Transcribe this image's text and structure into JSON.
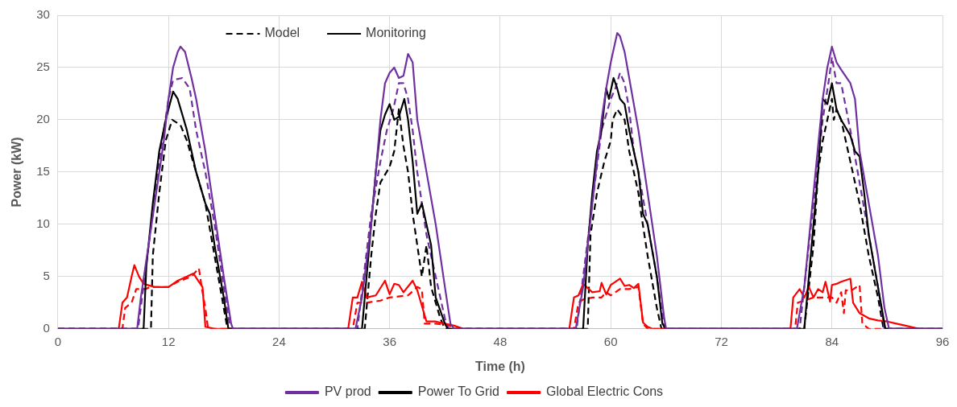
{
  "chart_data": {
    "type": "line",
    "xlabel": "Time (h)",
    "ylabel": "Power (kW)",
    "xlim": [
      0,
      96
    ],
    "ylim": [
      0,
      30
    ],
    "xticks": [
      0,
      12,
      24,
      36,
      48,
      60,
      72,
      84,
      96
    ],
    "yticks": [
      0,
      5,
      10,
      15,
      20,
      25,
      30
    ],
    "grid": true,
    "legend": "bottom",
    "marker": "none",
    "annotations": [
      "Model",
      "Monitoring"
    ],
    "series": [
      {
        "name": "PV prod",
        "color": "#7030a0",
        "line_style": "solid",
        "x": [
          0,
          8.6,
          9,
          10,
          11,
          11.5,
          12,
          12.5,
          13,
          13.3,
          13.8,
          14.5,
          15,
          16,
          17,
          18,
          18.8,
          19,
          32.3,
          33,
          34,
          34.5,
          35,
          35.5,
          36,
          36.5,
          37,
          37.5,
          38,
          38.5,
          39,
          40,
          41,
          42,
          42.6,
          43,
          56.2,
          57,
          58,
          59,
          59.5,
          60,
          60.5,
          60.7,
          61,
          61.5,
          62,
          63,
          64,
          65,
          65.8,
          66,
          80.2,
          81,
          82,
          83,
          83.5,
          84,
          84.5,
          85,
          86,
          86.5,
          87,
          88,
          89,
          89.7,
          90.2,
          96
        ],
        "values": [
          0,
          0,
          3,
          9,
          15,
          18,
          22,
          25,
          26.5,
          27,
          26.5,
          24,
          22,
          17,
          11,
          5,
          0.5,
          0,
          0,
          3,
          10,
          15,
          20,
          23.5,
          24.5,
          25,
          24,
          24.2,
          26.3,
          25.5,
          20,
          15,
          10,
          4,
          0.5,
          0,
          0,
          4,
          12,
          20,
          23,
          25.5,
          27.5,
          28.3,
          28,
          26.5,
          24,
          19,
          13,
          7,
          1,
          0,
          0,
          4,
          13,
          22,
          25,
          27,
          25.5,
          24.8,
          23.5,
          22,
          17,
          12,
          7,
          2,
          0,
          0
        ]
      },
      {
        "name": "Power To Grid",
        "color": "#000000",
        "line_style": "solid",
        "x": [
          0,
          9.3,
          9.6,
          10.3,
          11,
          11.7,
          12.5,
          13,
          14,
          15,
          16,
          16.5,
          17,
          18,
          18.5,
          33,
          33.5,
          34,
          34.5,
          35,
          35.5,
          36,
          36.5,
          37,
          37.6,
          38,
          38.5,
          39,
          39.5,
          40,
          40.5,
          41,
          42,
          42.3,
          57,
          57.5,
          58,
          58.5,
          59,
          59.5,
          59.8,
          60.3,
          60.7,
          61,
          61.5,
          62,
          62.5,
          63,
          63.5,
          64,
          65,
          65.6,
          66,
          81,
          81.5,
          82,
          82.5,
          83,
          83.5,
          84,
          84.5,
          85,
          86,
          86.5,
          87,
          87.5,
          88,
          89,
          89.8,
          96
        ],
        "values": [
          0,
          0,
          6,
          12,
          17,
          20,
          22.7,
          22,
          19,
          15,
          12,
          11,
          8,
          3,
          0,
          0,
          5,
          10,
          15,
          19,
          20.5,
          21.5,
          20,
          20.3,
          22,
          20,
          16,
          11,
          12,
          10,
          8,
          3,
          0.5,
          0,
          0,
          8,
          13,
          17,
          19,
          23,
          22,
          24,
          23,
          22,
          21.5,
          19,
          17,
          15,
          11,
          10,
          5,
          0.5,
          0,
          0,
          5,
          10,
          15,
          22,
          21.5,
          23.5,
          21,
          20,
          18.5,
          17,
          16.5,
          13,
          9,
          4,
          0,
          0
        ]
      },
      {
        "name": "Global Electric Cons",
        "color": "#ff0000",
        "line_style": "solid",
        "x": [
          0,
          6.6,
          7,
          7.5,
          8,
          8.3,
          8.8,
          9.3,
          10.5,
          12,
          13,
          14,
          14.7,
          15.3,
          15.7,
          16,
          17,
          31.5,
          32,
          32.5,
          33,
          33.5,
          34.5,
          35.5,
          36,
          36.5,
          37,
          37.5,
          38.5,
          39,
          40,
          41,
          42,
          43,
          44,
          55.5,
          56,
          56.5,
          57,
          58,
          58.8,
          59,
          59.5,
          60,
          60.5,
          61,
          61.5,
          62,
          62.5,
          63,
          63.5,
          64,
          64.5,
          79.5,
          79.8,
          80.5,
          81,
          81.5,
          82,
          82.5,
          83,
          83.3,
          83.8,
          84,
          84.5,
          85,
          86,
          86.3,
          87,
          88,
          89,
          90,
          91,
          92,
          93,
          93.5,
          96
        ],
        "values": [
          0,
          0,
          2.5,
          3,
          5,
          6.1,
          5,
          4.3,
          4,
          4,
          4.6,
          5,
          5.3,
          4.5,
          4,
          0.2,
          0,
          0,
          3,
          3,
          4.5,
          3,
          3.2,
          4.6,
          3.3,
          4.3,
          4.2,
          3.5,
          4.6,
          3.7,
          0.7,
          0.7,
          0.5,
          0.3,
          0,
          0,
          3,
          3.2,
          4.3,
          3.5,
          3.6,
          4.4,
          3.3,
          4.2,
          4.5,
          4.8,
          4.1,
          4.2,
          3.9,
          4.3,
          0.6,
          0.2,
          0,
          0,
          3,
          3.8,
          3,
          4,
          3,
          3.8,
          3.5,
          4.5,
          2.6,
          4.2,
          4.3,
          4.5,
          4.8,
          2.5,
          1.5,
          1,
          0.8,
          0.7,
          0.5,
          0.3,
          0.1,
          0,
          0
        ]
      },
      {
        "color": "#7030a0",
        "line_style": "dashed",
        "x": [
          0,
          8.7,
          10,
          11,
          12,
          12.5,
          13.5,
          14.3,
          15,
          16,
          17,
          18,
          18.7,
          32.5,
          34,
          35,
          35.7,
          36.4,
          37,
          37.5,
          38,
          38.5,
          39,
          40,
          41,
          42,
          42.4,
          56.3,
          57,
          58,
          59,
          60,
          60.5,
          61,
          61.5,
          62,
          62.5,
          63,
          64,
          65,
          65.8,
          80.5,
          81,
          82,
          83,
          83.7,
          84,
          84.5,
          85,
          86,
          87,
          88,
          89,
          89.7,
          96
        ],
        "values": [
          0,
          0,
          9,
          16,
          22,
          23.8,
          24,
          23,
          19,
          15,
          10,
          4,
          0,
          0,
          11,
          16,
          19,
          21,
          23.5,
          23.5,
          22,
          19,
          15,
          9,
          5,
          1,
          0,
          0,
          5,
          12,
          19,
          22,
          23,
          24.5,
          23.5,
          21,
          17,
          15,
          10,
          5,
          0,
          0,
          4,
          12,
          20,
          24,
          26,
          23.5,
          23.5,
          19,
          14,
          9,
          4,
          0,
          0
        ]
      },
      {
        "color": "#000000",
        "line_style": "dashed",
        "x": [
          0,
          10.1,
          10.3,
          11,
          11.7,
          12.4,
          13.3,
          14,
          15,
          16,
          17,
          18,
          18.4,
          33.3,
          34,
          34.5,
          35,
          36,
          36.5,
          37,
          37.5,
          38,
          38.5,
          39,
          39.5,
          40,
          40.5,
          41.5,
          42,
          57.5,
          57.8,
          58.5,
          59.3,
          60,
          60.2,
          60.7,
          61.5,
          62,
          63,
          63.3,
          64,
          65,
          65.5,
          81,
          82,
          82.5,
          83,
          84,
          84.2,
          84.5,
          85,
          85.5,
          86,
          87,
          88,
          89,
          89.6,
          96
        ],
        "values": [
          0,
          0,
          7,
          13,
          18,
          20,
          19.5,
          18,
          15,
          12,
          7,
          2,
          0,
          0,
          7,
          11,
          14,
          15.5,
          17,
          21,
          17.5,
          15,
          11,
          8,
          5,
          8,
          4,
          1,
          0,
          0,
          9,
          13,
          16,
          18,
          20,
          21,
          20,
          17,
          13,
          11,
          7,
          2,
          0,
          0,
          8,
          15,
          18,
          22,
          20,
          21,
          20,
          18,
          16,
          12,
          7,
          3,
          0,
          0
        ]
      },
      {
        "color": "#ff0000",
        "line_style": "dashed",
        "x": [
          0,
          7,
          7.3,
          8,
          8.5,
          9.5,
          10,
          12,
          13,
          14.5,
          15,
          15.3,
          15.6,
          16,
          16.3,
          32,
          32.5,
          33.5,
          35,
          36,
          38,
          39,
          39.5,
          39.8,
          41,
          42.5,
          43,
          56,
          56.5,
          57,
          58,
          59,
          59.5,
          60,
          60.5,
          61,
          62,
          63,
          63.5,
          64,
          80,
          80.3,
          81,
          82,
          84,
          84.5,
          85,
          85.3,
          85.5,
          86,
          87,
          87.3,
          88,
          96
        ],
        "values": [
          0,
          0,
          2,
          2.5,
          3.8,
          3.8,
          4,
          4,
          4.5,
          5,
          5.5,
          5.8,
          4,
          2,
          0,
          0,
          2.5,
          2.5,
          2.7,
          3,
          3.2,
          4,
          3.8,
          0.5,
          0.5,
          0.3,
          0,
          0,
          2.5,
          2.8,
          3,
          3,
          3.5,
          3.2,
          3.5,
          3.8,
          3.8,
          4,
          0.5,
          0,
          0,
          2.5,
          2.7,
          3,
          3,
          2.5,
          3.5,
          1.5,
          3.7,
          3.6,
          4.2,
          0.5,
          0,
          0
        ]
      }
    ]
  }
}
